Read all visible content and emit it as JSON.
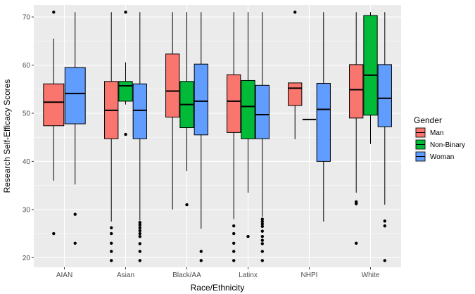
{
  "chart_data": {
    "type": "box",
    "xlabel": "Race/Ethnicity",
    "ylabel": "Research Self-Efficacy Scores",
    "ylim": [
      18,
      72.5
    ],
    "yticks": [
      20,
      30,
      40,
      50,
      60,
      70
    ],
    "categories": [
      "AIAN",
      "Asian",
      "Black/AA",
      "Latinx",
      "NHPI",
      "White"
    ],
    "legend": {
      "title": "Gender",
      "position": "right",
      "entries": [
        {
          "name": "Man",
          "color": "#F8766D"
        },
        {
          "name": "Non-Binary",
          "color": "#00BA38"
        },
        {
          "name": "Woman",
          "color": "#619CFF"
        }
      ]
    },
    "groups": [
      "Man",
      "Non-Binary",
      "Woman"
    ],
    "boxes": [
      {
        "category": "AIAN",
        "group": "Man",
        "min": 36,
        "q1": 47.4,
        "median": 52.3,
        "q3": 56.1,
        "max": 65.5,
        "outliers": [
          71,
          25
        ]
      },
      {
        "category": "AIAN",
        "group": "Woman",
        "min": 35.2,
        "q1": 47.8,
        "median": 54.1,
        "q3": 59.5,
        "max": 71,
        "outliers": [
          29,
          23
        ]
      },
      {
        "category": "Asian",
        "group": "Man",
        "min": 27.5,
        "q1": 44.7,
        "median": 50.6,
        "q3": 56.6,
        "max": 71,
        "outliers": [
          26.2,
          25,
          23,
          21.3,
          19.4
        ]
      },
      {
        "category": "Asian",
        "group": "Non-Binary",
        "min": 51.8,
        "q1": 52.5,
        "median": 55.7,
        "q3": 56.6,
        "max": 60.6,
        "outliers": [
          71,
          45.6
        ]
      },
      {
        "category": "Asian",
        "group": "Woman",
        "min": 27.7,
        "q1": 44.7,
        "median": 50.6,
        "q3": 56.1,
        "max": 71,
        "outliers": [
          27.3,
          26.8,
          26.2,
          25.6,
          25,
          24.4,
          22.9,
          21.3,
          19.4
        ]
      },
      {
        "category": "Black/AA",
        "group": "Man",
        "min": 30,
        "q1": 49.2,
        "median": 54.6,
        "q3": 62.3,
        "max": 71,
        "outliers": []
      },
      {
        "category": "Black/AA",
        "group": "Non-Binary",
        "min": 38,
        "q1": 47,
        "median": 51.8,
        "q3": 56.6,
        "max": 71,
        "outliers": [
          31
        ]
      },
      {
        "category": "Black/AA",
        "group": "Woman",
        "min": 26,
        "q1": 45.5,
        "median": 52.5,
        "q3": 60.2,
        "max": 71,
        "outliers": [
          21.3,
          19.4
        ]
      },
      {
        "category": "Latinx",
        "group": "Man",
        "min": 28,
        "q1": 46,
        "median": 52.5,
        "q3": 58,
        "max": 71,
        "outliers": [
          26.6,
          25,
          23,
          21.3,
          19.4
        ]
      },
      {
        "category": "Latinx",
        "group": "Non-Binary",
        "min": 33.5,
        "q1": 44.7,
        "median": 51.4,
        "q3": 56.8,
        "max": 71,
        "outliers": [
          24.4
        ]
      },
      {
        "category": "Latinx",
        "group": "Woman",
        "min": 28.5,
        "q1": 44.7,
        "median": 49.7,
        "q3": 55.8,
        "max": 71,
        "outliers": [
          28,
          27.5,
          27,
          26.5,
          25.5,
          24.4,
          23.6,
          22.9,
          21.3,
          19.4
        ]
      },
      {
        "category": "NHPI",
        "group": "Man",
        "min": 44.6,
        "q1": 51.6,
        "median": 55.2,
        "q3": 56.3,
        "max": 56.3,
        "outliers": [
          71
        ]
      },
      {
        "category": "NHPI",
        "group": "Non-Binary",
        "min": 48.7,
        "q1": 48.7,
        "median": 48.7,
        "q3": 48.7,
        "max": 48.7,
        "outliers": []
      },
      {
        "category": "NHPI",
        "group": "Woman",
        "min": 27.5,
        "q1": 40,
        "median": 50.8,
        "q3": 56.2,
        "max": 71,
        "outliers": []
      },
      {
        "category": "White",
        "group": "Man",
        "min": 33.5,
        "q1": 49,
        "median": 54.9,
        "q3": 60.1,
        "max": 71,
        "outliers": [
          31.6,
          31.2,
          23
        ]
      },
      {
        "category": "White",
        "group": "Non-Binary",
        "min": 43.6,
        "q1": 49.6,
        "median": 57.9,
        "q3": 70.3,
        "max": 71,
        "outliers": []
      },
      {
        "category": "White",
        "group": "Woman",
        "min": 31,
        "q1": 47.2,
        "median": 53.1,
        "q3": 60.1,
        "max": 71,
        "outliers": [
          27.6,
          26.6,
          19.4
        ]
      }
    ]
  }
}
